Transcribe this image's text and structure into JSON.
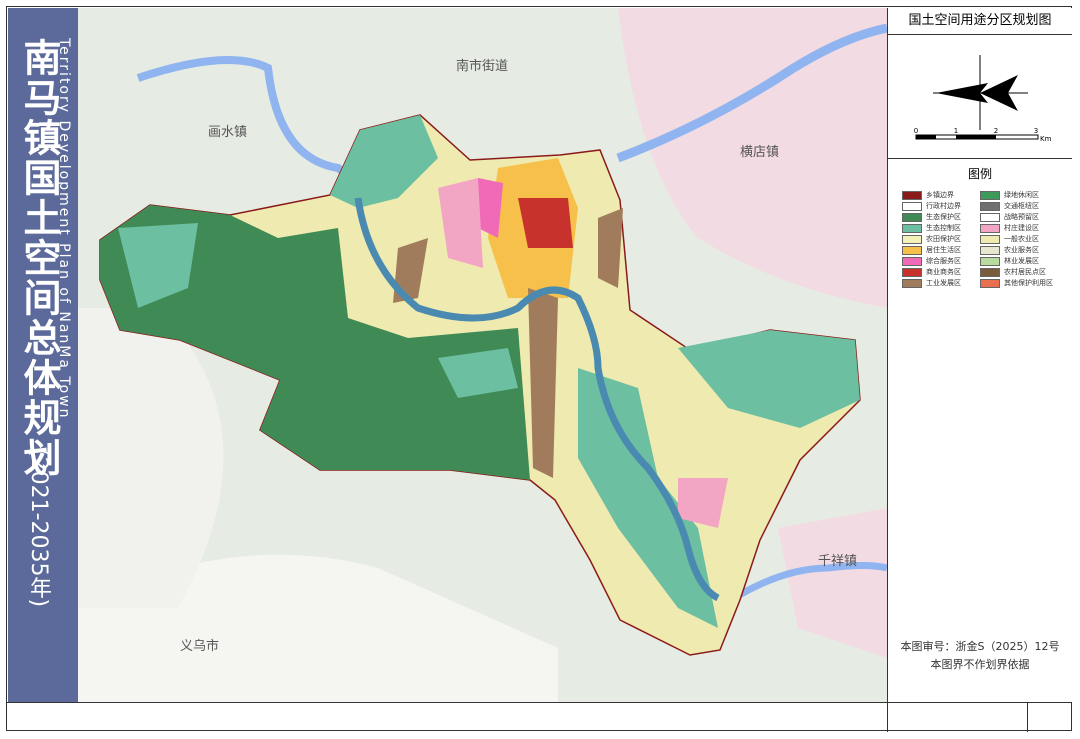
{
  "title": {
    "main": "南马镇国土空间总体规划",
    "english": "Territory Development Plan of NanMa Town",
    "years": "(2021-2035年)"
  },
  "panel": {
    "map_title": "国土空间用途分区规划图",
    "scale": [
      "0",
      "1",
      "2",
      "3"
    ],
    "scale_unit": "Km",
    "legend_title": "图例"
  },
  "legend": [
    {
      "label": "乡镇边界",
      "color": "#8b1a1a"
    },
    {
      "label": "行政村边界",
      "color": "#ffffff"
    },
    {
      "label": "生态保护区",
      "color": "#3f8a55"
    },
    {
      "label": "生态控制区",
      "color": "#6cbfa0"
    },
    {
      "label": "农田保护区",
      "color": "#f3f1b8"
    },
    {
      "label": "居住生活区",
      "color": "#f7c04a"
    },
    {
      "label": "综合服务区",
      "color": "#f06ab8"
    },
    {
      "label": "商业商务区",
      "color": "#c8322c"
    },
    {
      "label": "工业发展区",
      "color": "#a07c5c"
    },
    {
      "label": "绿地休闲区",
      "color": "#3c9a5a"
    },
    {
      "label": "交通枢纽区",
      "color": "#707070"
    },
    {
      "label": "战略预留区",
      "color": "#ffffff"
    },
    {
      "label": "村庄建设区",
      "color": "#f2a6c3"
    },
    {
      "label": "一般农业区",
      "color": "#efeab0"
    },
    {
      "label": "农业服务区",
      "color": "#e8e6d0"
    },
    {
      "label": "林业发展区",
      "color": "#b8dca0"
    },
    {
      "label": "农村居民点区",
      "color": "#7a5a3c"
    },
    {
      "label": "其他保护利用区",
      "color": "#e87050"
    }
  ],
  "places": {
    "nanshi": "南市街道",
    "huashui": "画水镇",
    "hengdian": "横店镇",
    "qianxiang": "千祥镇",
    "yiwu": "义乌市"
  },
  "footer": {
    "approval": "本图审号：浙金S（2025）12号",
    "note": "本图界不作划界依据"
  }
}
